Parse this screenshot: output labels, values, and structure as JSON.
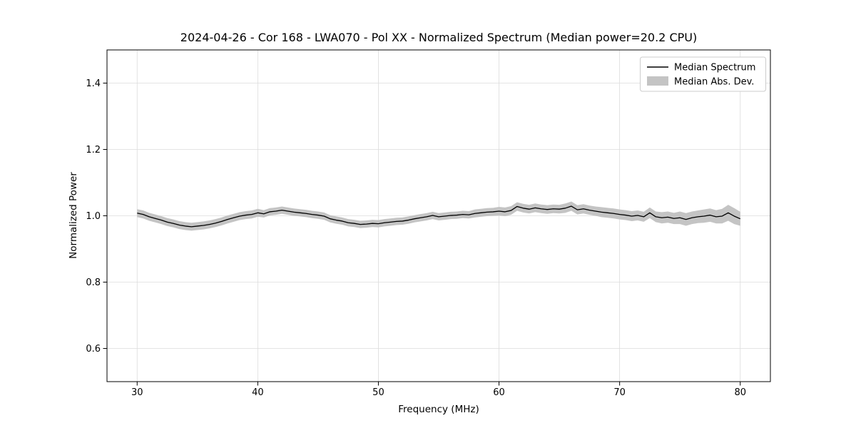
{
  "figure": {
    "background": "#ffffff",
    "colors": {
      "line": "#000000",
      "band": "#c4c4c4",
      "grid": "#dcdcdc",
      "legend_border": "#cccccc"
    }
  },
  "chart_data": {
    "type": "line",
    "title": "2024-04-26 - Cor 168 - LWA070 - Pol XX - Normalized Spectrum (Median power=20.2 CPU)",
    "xlabel": "Frequency (MHz)",
    "ylabel": "Normalized Power",
    "xlim": [
      27.5,
      82.5
    ],
    "ylim": [
      0.5,
      1.5
    ],
    "xticks": [
      30,
      40,
      50,
      60,
      70,
      80
    ],
    "yticks": [
      0.6,
      0.8,
      1.0,
      1.2,
      1.4
    ],
    "grid": true,
    "legend_position": "upper right",
    "x": [
      30,
      30.5,
      31,
      31.5,
      32,
      32.5,
      33,
      33.5,
      34,
      34.5,
      35,
      35.5,
      36,
      36.5,
      37,
      37.5,
      38,
      38.5,
      39,
      39.5,
      40,
      40.5,
      41,
      41.5,
      42,
      42.5,
      43,
      43.5,
      44,
      44.5,
      45,
      45.5,
      46,
      46.5,
      47,
      47.5,
      48,
      48.5,
      49,
      49.5,
      50,
      50.5,
      51,
      51.5,
      52,
      52.5,
      53,
      53.5,
      54,
      54.5,
      55,
      55.5,
      56,
      56.5,
      57,
      57.5,
      58,
      58.5,
      59,
      59.5,
      60,
      60.5,
      61,
      61.5,
      62,
      62.5,
      63,
      63.5,
      64,
      64.5,
      65,
      65.5,
      66,
      66.5,
      67,
      67.5,
      68,
      68.5,
      69,
      69.5,
      70,
      70.5,
      71,
      71.5,
      72,
      72.5,
      73,
      73.5,
      74,
      74.5,
      75,
      75.5,
      76,
      76.5,
      77,
      77.5,
      78,
      78.5,
      79,
      79.5,
      80
    ],
    "series": [
      {
        "name": "Median Spectrum",
        "style": "line",
        "color": "#000000",
        "values": [
          1.008,
          1.004,
          0.997,
          0.992,
          0.987,
          0.981,
          0.977,
          0.972,
          0.969,
          0.967,
          0.969,
          0.971,
          0.974,
          0.978,
          0.983,
          0.989,
          0.994,
          0.999,
          1.002,
          1.004,
          1.009,
          1.006,
          1.012,
          1.014,
          1.017,
          1.014,
          1.011,
          1.009,
          1.007,
          1.004,
          1.002,
          0.999,
          0.991,
          0.987,
          0.984,
          0.979,
          0.977,
          0.974,
          0.975,
          0.977,
          0.976,
          0.979,
          0.981,
          0.983,
          0.984,
          0.987,
          0.991,
          0.994,
          0.997,
          1.001,
          0.997,
          0.999,
          1.001,
          1.002,
          1.004,
          1.003,
          1.007,
          1.009,
          1.011,
          1.012,
          1.014,
          1.012,
          1.016,
          1.028,
          1.023,
          1.02,
          1.024,
          1.021,
          1.019,
          1.021,
          1.02,
          1.023,
          1.029,
          1.018,
          1.021,
          1.017,
          1.014,
          1.011,
          1.009,
          1.007,
          1.004,
          1.002,
          0.999,
          1.001,
          0.997,
          1.009,
          0.997,
          0.994,
          0.996,
          0.992,
          0.994,
          0.989,
          0.994,
          0.997,
          0.999,
          1.002,
          0.997,
          0.999,
          1.009,
          0.999,
          0.991
        ]
      },
      {
        "name": "Median Abs. Dev.",
        "style": "band_halfwidth",
        "color": "#c4c4c4",
        "values": [
          0.012,
          0.012,
          0.012,
          0.012,
          0.012,
          0.012,
          0.012,
          0.012,
          0.012,
          0.012,
          0.012,
          0.012,
          0.012,
          0.012,
          0.012,
          0.012,
          0.012,
          0.012,
          0.012,
          0.012,
          0.012,
          0.011,
          0.011,
          0.011,
          0.011,
          0.011,
          0.011,
          0.011,
          0.011,
          0.011,
          0.011,
          0.011,
          0.011,
          0.011,
          0.011,
          0.011,
          0.011,
          0.011,
          0.011,
          0.011,
          0.011,
          0.011,
          0.011,
          0.011,
          0.011,
          0.011,
          0.011,
          0.011,
          0.011,
          0.011,
          0.011,
          0.011,
          0.011,
          0.011,
          0.011,
          0.011,
          0.012,
          0.012,
          0.012,
          0.012,
          0.013,
          0.013,
          0.013,
          0.013,
          0.013,
          0.013,
          0.013,
          0.013,
          0.013,
          0.013,
          0.013,
          0.014,
          0.014,
          0.014,
          0.014,
          0.014,
          0.014,
          0.015,
          0.015,
          0.015,
          0.015,
          0.015,
          0.015,
          0.015,
          0.015,
          0.016,
          0.016,
          0.017,
          0.017,
          0.017,
          0.019,
          0.019,
          0.019,
          0.019,
          0.02,
          0.02,
          0.02,
          0.022,
          0.024,
          0.024,
          0.021
        ]
      }
    ]
  }
}
